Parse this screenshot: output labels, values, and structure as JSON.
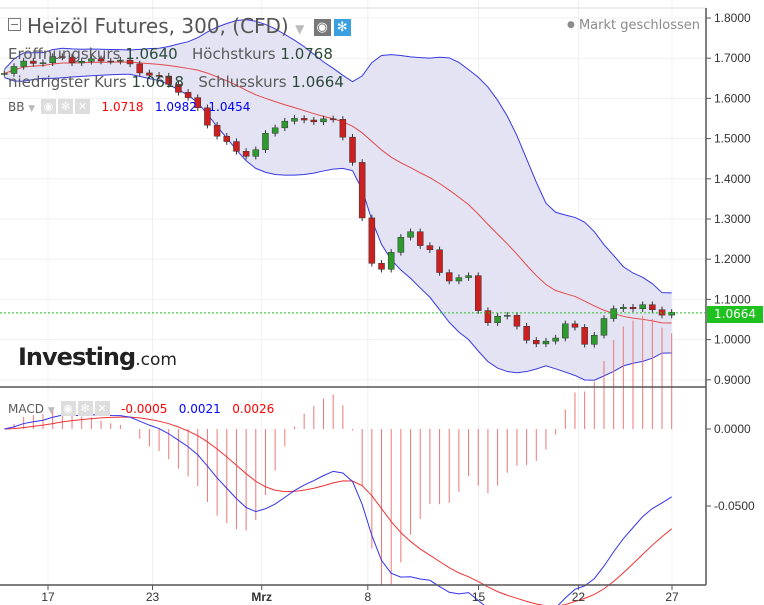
{
  "header": {
    "title": "Heizöl Futures, 300, (CFD)",
    "status": "Markt geschlossen",
    "open_label": "Eröffnungskurs",
    "open": "1.0640",
    "high_label": "Höchstkurs",
    "high": "1.0768",
    "low_label": "niedrigster Kurs",
    "low": "1.0618",
    "close_label": "Schlusskurs",
    "close": "1.0664"
  },
  "bb": {
    "label": "BB",
    "mid": "1.0718",
    "upper": "1.0982",
    "lower": "1.0454"
  },
  "macd": {
    "label": "MACD",
    "hist": "-0.0005",
    "macd": "0.0021",
    "signal": "0.0026"
  },
  "logo": {
    "brand": "Investing",
    "suffix": ".com"
  },
  "current_price": "1.0664",
  "colors": {
    "up": "#2e9a2e",
    "down": "#cc1f1f",
    "band": "#3838e0",
    "bandfill": "#e3e3f3",
    "mid": "#e34a4a",
    "price_line": "#1ec11e"
  },
  "chart_data": {
    "type": "candlestick",
    "price_axis": {
      "ticks": [
        "1.8000",
        "1.7000",
        "1.6000",
        "1.5000",
        "1.4000",
        "1.3000",
        "1.2000",
        "1.1000",
        "1.0000",
        "0.9000"
      ],
      "range": [
        0.9,
        1.8
      ]
    },
    "macd_axis": {
      "ticks": [
        "0.0000",
        "-0.0500"
      ],
      "range": [
        -0.1,
        0.02
      ]
    },
    "x_ticks": [
      {
        "label": "17",
        "day": 0
      },
      {
        "label": "23",
        "day": 6.7
      },
      {
        "label": "Mrz",
        "day": 13.7
      },
      {
        "label": "8",
        "day": 20.5
      },
      {
        "label": "15",
        "day": 27.6
      },
      {
        "label": "22",
        "day": 34
      },
      {
        "label": "27",
        "day": 40
      }
    ],
    "close_path": [
      [
        -2.8,
        1.67
      ],
      [
        -1.2,
        1.69
      ],
      [
        0.8,
        1.7
      ],
      [
        2.7,
        1.69
      ],
      [
        4,
        1.7
      ],
      [
        5.3,
        1.68
      ],
      [
        6.5,
        1.66
      ],
      [
        7.5,
        1.64
      ],
      [
        8.5,
        1.62
      ],
      [
        9.4,
        1.58
      ],
      [
        10.4,
        1.53
      ],
      [
        11.3,
        1.49
      ],
      [
        12.3,
        1.46
      ],
      [
        13.3,
        1.47
      ],
      [
        14.2,
        1.52
      ],
      [
        15.2,
        1.55
      ],
      [
        16.2,
        1.54
      ],
      [
        17.1,
        1.55
      ],
      [
        18.1,
        1.55
      ],
      [
        19,
        1.5
      ],
      [
        19.7,
        1.43
      ],
      [
        20.3,
        1.25
      ],
      [
        21,
        1.15
      ],
      [
        21.6,
        1.2
      ],
      [
        22.2,
        1.23
      ],
      [
        23.2,
        1.27
      ],
      [
        23.9,
        1.24
      ],
      [
        24.5,
        1.22
      ],
      [
        25.1,
        1.16
      ],
      [
        25.8,
        1.15
      ],
      [
        26.4,
        1.16
      ],
      [
        27.1,
        1.15
      ],
      [
        27.7,
        1.05
      ],
      [
        28.3,
        1.05
      ],
      [
        29,
        1.06
      ],
      [
        29.6,
        1.05
      ],
      [
        30.3,
        1.03
      ],
      [
        30.9,
        0.99
      ],
      [
        31.5,
        0.98
      ],
      [
        32.2,
        1.0
      ],
      [
        32.8,
        1.02
      ],
      [
        33.5,
        1.06
      ],
      [
        34.1,
        0.98
      ],
      [
        34.7,
        1.0
      ],
      [
        35.4,
        1.04
      ],
      [
        36,
        1.06
      ],
      [
        36.7,
        1.09
      ],
      [
        37.3,
        1.08
      ],
      [
        38,
        1.08
      ],
      [
        38.6,
        1.075
      ],
      [
        39.2,
        1.07
      ],
      [
        39.9,
        1.065
      ],
      [
        40.5,
        1.0664
      ]
    ]
  }
}
